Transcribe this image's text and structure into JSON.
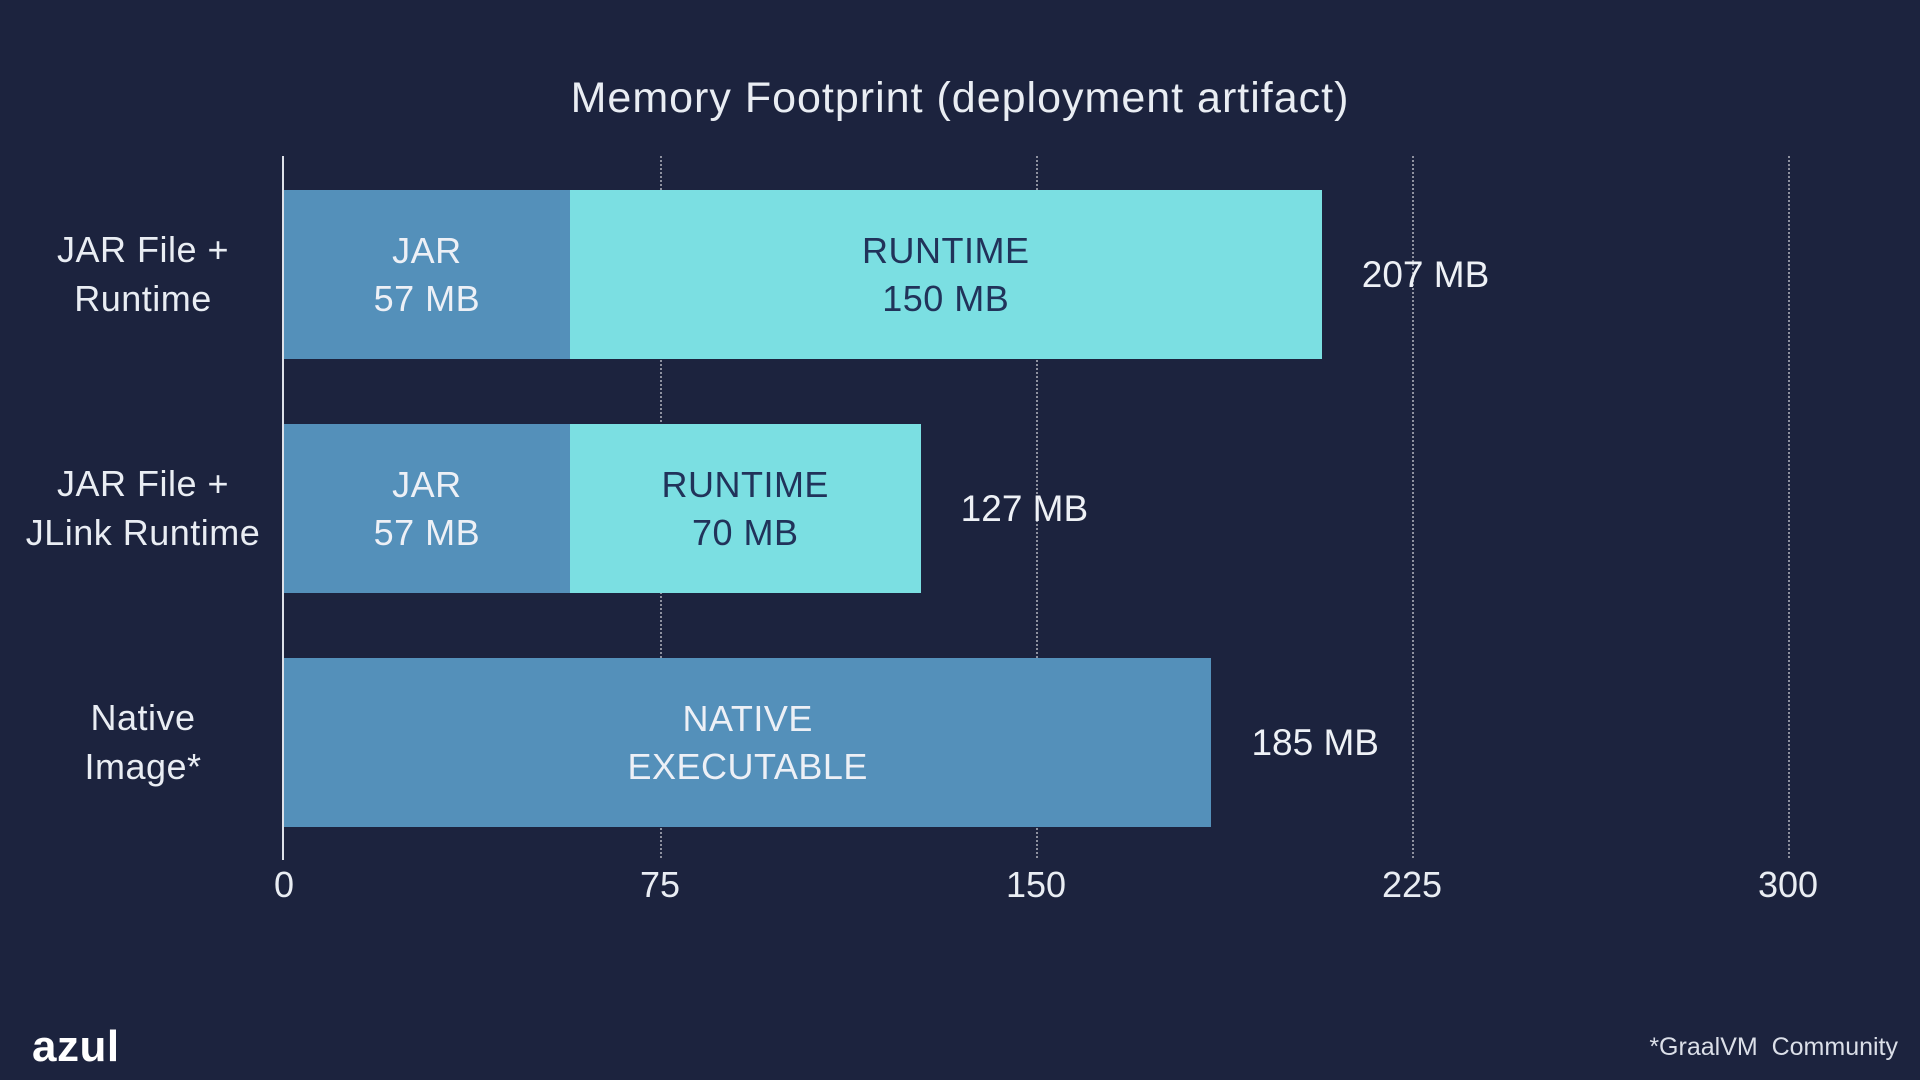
{
  "slide": {
    "title": "Memory Footprint (deployment artifact)",
    "footnote": "*GraalVM  Community",
    "logo_text": "azul"
  },
  "colors": {
    "background": "#1c233e",
    "jar_blue": "#5490ba",
    "runtime_cyan": "#7bdfe2",
    "light_text": "#edf0f6",
    "dark_text": "#21335a",
    "axis_line": "#dde1e9",
    "gridline": "rgba(255,255,255,0.50)"
  },
  "chart_data": {
    "type": "bar",
    "orientation": "horizontal",
    "stacked": true,
    "title": "Memory Footprint (deployment artifact)",
    "xlabel": "",
    "ylabel": "",
    "unit": "MB",
    "xlim": [
      0,
      300
    ],
    "xticks": [
      0,
      75,
      150,
      225,
      300
    ],
    "gridlines": "vertical-dotted",
    "legend": "none",
    "categories": [
      "JAR File + Runtime",
      "JAR File + JLink Runtime",
      "Native Image*"
    ],
    "rows": [
      {
        "label_lines": [
          "JAR File +",
          "Runtime"
        ],
        "total_mb": 207,
        "total_label": "207 MB",
        "segments": [
          {
            "name": "jar",
            "value_mb": 57,
            "lines": [
              "JAR",
              "57 MB"
            ],
            "color": "jar_blue",
            "text_color": "light_text"
          },
          {
            "name": "runtime",
            "value_mb": 150,
            "lines": [
              "RUNTIME",
              "150 MB"
            ],
            "color": "runtime_cyan",
            "text_color": "dark_text"
          }
        ]
      },
      {
        "label_lines": [
          "JAR File +",
          "JLink Runtime"
        ],
        "total_mb": 127,
        "total_label": "127 MB",
        "segments": [
          {
            "name": "jar",
            "value_mb": 57,
            "lines": [
              "JAR",
              "57 MB"
            ],
            "color": "jar_blue",
            "text_color": "light_text"
          },
          {
            "name": "runtime",
            "value_mb": 70,
            "lines": [
              "RUNTIME",
              "70 MB"
            ],
            "color": "runtime_cyan",
            "text_color": "dark_text"
          }
        ]
      },
      {
        "label_lines": [
          "Native",
          "Image*"
        ],
        "total_mb": 185,
        "total_label": "185 MB",
        "segments": [
          {
            "name": "native-executable",
            "value_mb": 185,
            "lines": [
              "NATIVE",
              "EXECUTABLE"
            ],
            "color": "jar_blue",
            "text_color": "light_text"
          }
        ]
      }
    ]
  }
}
